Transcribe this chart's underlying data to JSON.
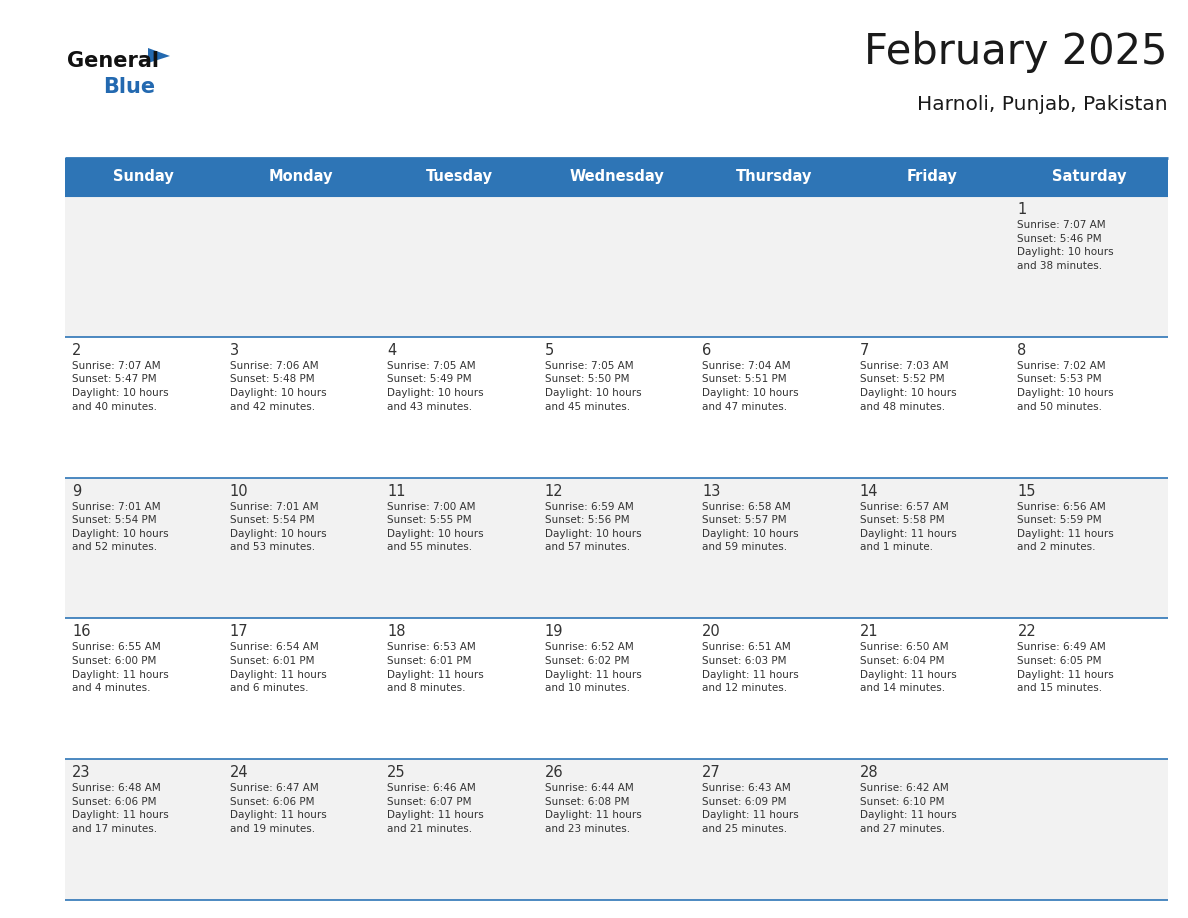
{
  "title": "February 2025",
  "subtitle": "Harnoli, Punjab, Pakistan",
  "header_bg": "#2E75B6",
  "header_text_color": "#FFFFFF",
  "cell_bg_even": "#F2F2F2",
  "cell_bg_odd": "#FFFFFF",
  "border_color": "#2E75B6",
  "text_color": "#333333",
  "days_of_week": [
    "Sunday",
    "Monday",
    "Tuesday",
    "Wednesday",
    "Thursday",
    "Friday",
    "Saturday"
  ],
  "calendar": [
    [
      {
        "day": null,
        "sunrise": null,
        "sunset": null,
        "daylight": null
      },
      {
        "day": null,
        "sunrise": null,
        "sunset": null,
        "daylight": null
      },
      {
        "day": null,
        "sunrise": null,
        "sunset": null,
        "daylight": null
      },
      {
        "day": null,
        "sunrise": null,
        "sunset": null,
        "daylight": null
      },
      {
        "day": null,
        "sunrise": null,
        "sunset": null,
        "daylight": null
      },
      {
        "day": null,
        "sunrise": null,
        "sunset": null,
        "daylight": null
      },
      {
        "day": 1,
        "sunrise": "7:07 AM",
        "sunset": "5:46 PM",
        "daylight": "10 hours\nand 38 minutes."
      }
    ],
    [
      {
        "day": 2,
        "sunrise": "7:07 AM",
        "sunset": "5:47 PM",
        "daylight": "10 hours\nand 40 minutes."
      },
      {
        "day": 3,
        "sunrise": "7:06 AM",
        "sunset": "5:48 PM",
        "daylight": "10 hours\nand 42 minutes."
      },
      {
        "day": 4,
        "sunrise": "7:05 AM",
        "sunset": "5:49 PM",
        "daylight": "10 hours\nand 43 minutes."
      },
      {
        "day": 5,
        "sunrise": "7:05 AM",
        "sunset": "5:50 PM",
        "daylight": "10 hours\nand 45 minutes."
      },
      {
        "day": 6,
        "sunrise": "7:04 AM",
        "sunset": "5:51 PM",
        "daylight": "10 hours\nand 47 minutes."
      },
      {
        "day": 7,
        "sunrise": "7:03 AM",
        "sunset": "5:52 PM",
        "daylight": "10 hours\nand 48 minutes."
      },
      {
        "day": 8,
        "sunrise": "7:02 AM",
        "sunset": "5:53 PM",
        "daylight": "10 hours\nand 50 minutes."
      }
    ],
    [
      {
        "day": 9,
        "sunrise": "7:01 AM",
        "sunset": "5:54 PM",
        "daylight": "10 hours\nand 52 minutes."
      },
      {
        "day": 10,
        "sunrise": "7:01 AM",
        "sunset": "5:54 PM",
        "daylight": "10 hours\nand 53 minutes."
      },
      {
        "day": 11,
        "sunrise": "7:00 AM",
        "sunset": "5:55 PM",
        "daylight": "10 hours\nand 55 minutes."
      },
      {
        "day": 12,
        "sunrise": "6:59 AM",
        "sunset": "5:56 PM",
        "daylight": "10 hours\nand 57 minutes."
      },
      {
        "day": 13,
        "sunrise": "6:58 AM",
        "sunset": "5:57 PM",
        "daylight": "10 hours\nand 59 minutes."
      },
      {
        "day": 14,
        "sunrise": "6:57 AM",
        "sunset": "5:58 PM",
        "daylight": "11 hours\nand 1 minute."
      },
      {
        "day": 15,
        "sunrise": "6:56 AM",
        "sunset": "5:59 PM",
        "daylight": "11 hours\nand 2 minutes."
      }
    ],
    [
      {
        "day": 16,
        "sunrise": "6:55 AM",
        "sunset": "6:00 PM",
        "daylight": "11 hours\nand 4 minutes."
      },
      {
        "day": 17,
        "sunrise": "6:54 AM",
        "sunset": "6:01 PM",
        "daylight": "11 hours\nand 6 minutes."
      },
      {
        "day": 18,
        "sunrise": "6:53 AM",
        "sunset": "6:01 PM",
        "daylight": "11 hours\nand 8 minutes."
      },
      {
        "day": 19,
        "sunrise": "6:52 AM",
        "sunset": "6:02 PM",
        "daylight": "11 hours\nand 10 minutes."
      },
      {
        "day": 20,
        "sunrise": "6:51 AM",
        "sunset": "6:03 PM",
        "daylight": "11 hours\nand 12 minutes."
      },
      {
        "day": 21,
        "sunrise": "6:50 AM",
        "sunset": "6:04 PM",
        "daylight": "11 hours\nand 14 minutes."
      },
      {
        "day": 22,
        "sunrise": "6:49 AM",
        "sunset": "6:05 PM",
        "daylight": "11 hours\nand 15 minutes."
      }
    ],
    [
      {
        "day": 23,
        "sunrise": "6:48 AM",
        "sunset": "6:06 PM",
        "daylight": "11 hours\nand 17 minutes."
      },
      {
        "day": 24,
        "sunrise": "6:47 AM",
        "sunset": "6:06 PM",
        "daylight": "11 hours\nand 19 minutes."
      },
      {
        "day": 25,
        "sunrise": "6:46 AM",
        "sunset": "6:07 PM",
        "daylight": "11 hours\nand 21 minutes."
      },
      {
        "day": 26,
        "sunrise": "6:44 AM",
        "sunset": "6:08 PM",
        "daylight": "11 hours\nand 23 minutes."
      },
      {
        "day": 27,
        "sunrise": "6:43 AM",
        "sunset": "6:09 PM",
        "daylight": "11 hours\nand 25 minutes."
      },
      {
        "day": 28,
        "sunrise": "6:42 AM",
        "sunset": "6:10 PM",
        "daylight": "11 hours\nand 27 minutes."
      },
      {
        "day": null,
        "sunrise": null,
        "sunset": null,
        "daylight": null
      }
    ]
  ],
  "logo_color_general": "#111111",
  "logo_color_blue": "#2369B0",
  "logo_triangle_color": "#2369B0",
  "fig_width": 11.88,
  "fig_height": 9.18,
  "dpi": 100
}
